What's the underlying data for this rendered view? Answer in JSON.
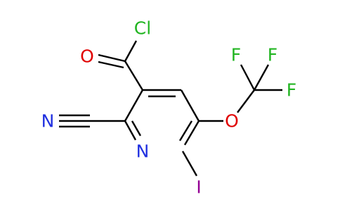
{
  "atoms": [
    "Cl",
    "O",
    "F",
    "F",
    "F",
    "O",
    "N",
    "N",
    "I"
  ]
}
